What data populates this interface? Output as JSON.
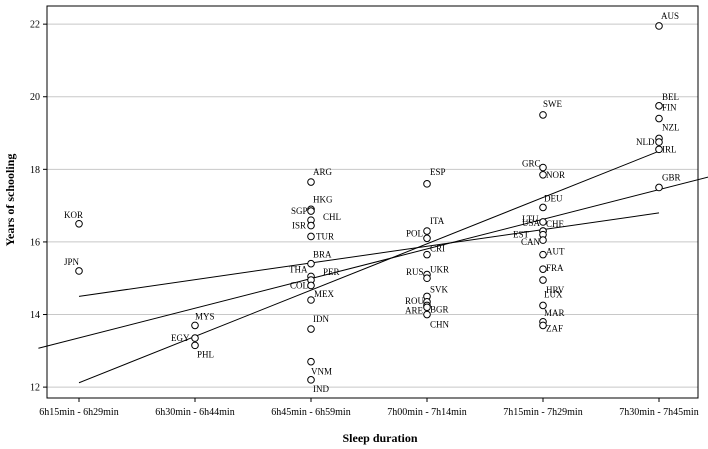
{
  "chart_data": {
    "type": "scatter",
    "title": "",
    "xlabel": "Sleep duration",
    "ylabel": "Years of schooling",
    "categories": [
      "6h15min - 6h29min",
      "6h30min - 6h44min",
      "6h45min - 6h59min",
      "7h00min - 7h14min",
      "7h15min - 7h29min",
      "7h30min - 7h45min"
    ],
    "ylim": [
      11.7,
      22.5
    ],
    "yticks": [
      12,
      14,
      16,
      18,
      20,
      22
    ],
    "grid": true,
    "points": [
      {
        "label": "KOR",
        "x": 0,
        "y": 16.5
      },
      {
        "label": "JPN",
        "x": 0,
        "y": 15.2
      },
      {
        "label": "MYS",
        "x": 1,
        "y": 13.7
      },
      {
        "label": "EGY",
        "x": 1,
        "y": 13.35
      },
      {
        "label": "PHL",
        "x": 1,
        "y": 13.15
      },
      {
        "label": "ARG",
        "x": 2,
        "y": 17.65
      },
      {
        "label": "HKG",
        "x": 2,
        "y": 16.9
      },
      {
        "label": "SGP",
        "x": 2,
        "y": 16.85
      },
      {
        "label": "CHL",
        "x": 2,
        "y": 16.6
      },
      {
        "label": "ISR",
        "x": 2,
        "y": 16.45
      },
      {
        "label": "TUR",
        "x": 2,
        "y": 16.15
      },
      {
        "label": "BRA",
        "x": 2,
        "y": 15.4
      },
      {
        "label": "THA",
        "x": 2,
        "y": 15.05
      },
      {
        "label": "PER",
        "x": 2,
        "y": 14.95
      },
      {
        "label": "COL",
        "x": 2,
        "y": 14.8
      },
      {
        "label": "MEX",
        "x": 2,
        "y": 14.4
      },
      {
        "label": "IDN",
        "x": 2,
        "y": 13.6
      },
      {
        "label": "VNM",
        "x": 2,
        "y": 12.7
      },
      {
        "label": "IND",
        "x": 2,
        "y": 12.2
      },
      {
        "label": "ESP",
        "x": 3,
        "y": 17.6
      },
      {
        "label": "ITA",
        "x": 3,
        "y": 16.3
      },
      {
        "label": "POL",
        "x": 3,
        "y": 16.1
      },
      {
        "label": "CRI",
        "x": 3,
        "y": 15.65
      },
      {
        "label": "UKR",
        "x": 3,
        "y": 15.1
      },
      {
        "label": "RUS",
        "x": 3,
        "y": 15.0
      },
      {
        "label": "SVK",
        "x": 3,
        "y": 14.5
      },
      {
        "label": "ROU",
        "x": 3,
        "y": 14.35
      },
      {
        "label": "BGR",
        "x": 3,
        "y": 14.25
      },
      {
        "label": "ARE",
        "x": 3,
        "y": 14.2
      },
      {
        "label": "CHN",
        "x": 3,
        "y": 14.0
      },
      {
        "label": "SWE",
        "x": 4,
        "y": 19.5
      },
      {
        "label": "GRC",
        "x": 4,
        "y": 18.05
      },
      {
        "label": "NOR",
        "x": 4,
        "y": 17.85
      },
      {
        "label": "DEU",
        "x": 4,
        "y": 16.95
      },
      {
        "label": "LTU",
        "x": 4,
        "y": 16.55
      },
      {
        "label": "USA",
        "x": 4,
        "y": 16.3
      },
      {
        "label": "CHE",
        "x": 4,
        "y": 16.3
      },
      {
        "label": "EST",
        "x": 4,
        "y": 16.2
      },
      {
        "label": "CAN",
        "x": 4,
        "y": 16.05
      },
      {
        "label": "AUT",
        "x": 4,
        "y": 15.65
      },
      {
        "label": "FRA",
        "x": 4,
        "y": 15.25
      },
      {
        "label": "HRV",
        "x": 4,
        "y": 14.95
      },
      {
        "label": "LUX",
        "x": 4,
        "y": 14.25
      },
      {
        "label": "MAR",
        "x": 4,
        "y": 13.8
      },
      {
        "label": "ZAF",
        "x": 4,
        "y": 13.7
      },
      {
        "label": "AUS",
        "x": 5,
        "y": 21.95
      },
      {
        "label": "BEL",
        "x": 5,
        "y": 19.75
      },
      {
        "label": "FIN",
        "x": 5,
        "y": 19.4
      },
      {
        "label": "NZL",
        "x": 5,
        "y": 18.85
      },
      {
        "label": "NLD",
        "x": 5,
        "y": 18.75
      },
      {
        "label": "IRL",
        "x": 5,
        "y": 18.55
      },
      {
        "label": "GBR",
        "x": 5,
        "y": 17.5
      }
    ],
    "fit_lines": [
      {
        "name": "lower-bound",
        "x0": 0,
        "y0": 14.5,
        "x1": 5,
        "y1": 16.8
      },
      {
        "name": "upper-bound",
        "x0": 0,
        "y0": 12.12,
        "x1": 5,
        "y1": 18.5
      },
      {
        "name": "regression",
        "x0": -0.35,
        "y0": 13.07,
        "x1": 5.5,
        "y1": 17.85
      }
    ]
  }
}
